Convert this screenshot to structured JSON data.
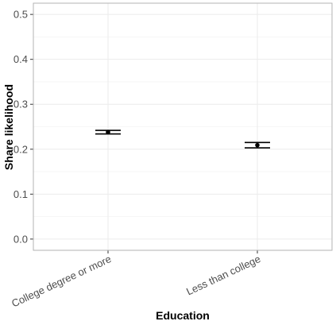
{
  "chart_data": {
    "type": "scatter",
    "subtype": "point-with-error-bars",
    "xlabel": "Education",
    "ylabel": "Share likelihood",
    "categories": [
      "College degree or more",
      "Less than college"
    ],
    "points": [
      {
        "category": "College degree or more",
        "y": 0.238,
        "lower": 0.234,
        "upper": 0.242
      },
      {
        "category": "Less than college",
        "y": 0.209,
        "lower": 0.203,
        "upper": 0.215
      }
    ],
    "ylim": [
      -0.025,
      0.525
    ],
    "yticks": [
      0.0,
      0.1,
      0.2,
      0.3,
      0.4,
      0.5
    ],
    "ytick_labels": [
      "0.0",
      "0.1",
      "0.2",
      "0.3",
      "0.4",
      "0.5"
    ],
    "grid": true,
    "legend": "none",
    "colors": {
      "point": "#000000",
      "grid": "#ebebeb",
      "border": "#b3b3b3",
      "background": "#ffffff"
    }
  }
}
